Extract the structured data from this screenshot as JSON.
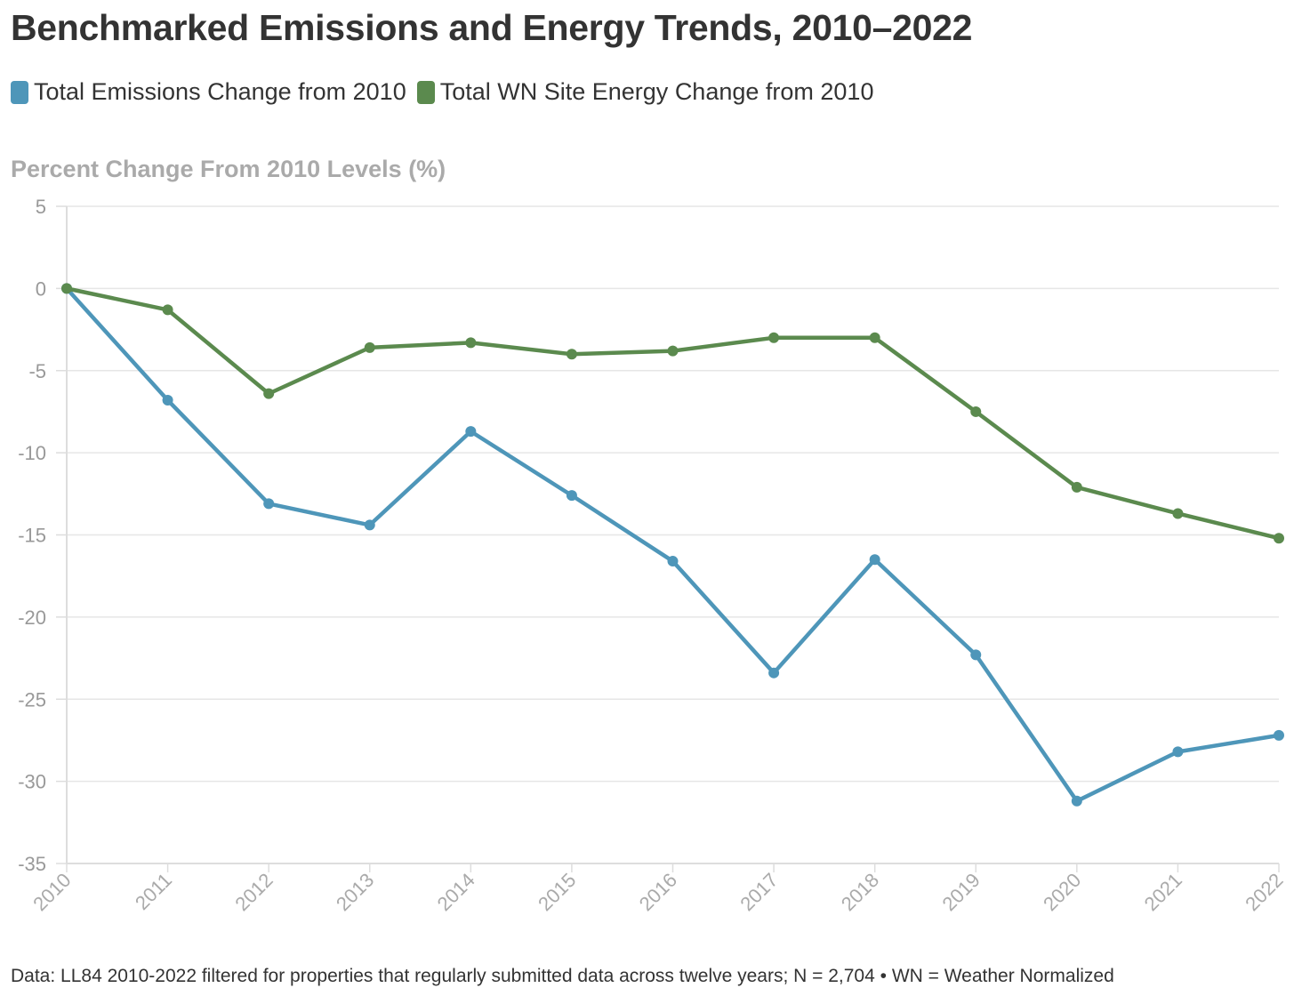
{
  "title": "Benchmarked Emissions and Energy Trends, 2010–2022",
  "footer": "Data: LL84 2010-2022 filtered for properties that regularly submitted data across twelve years; N = 2,704 • WN = Weather Normalized",
  "chart_data": {
    "type": "line",
    "title": "Benchmarked Emissions and Energy Trends, 2010–2022",
    "ylabel": "Percent Change From 2010 Levels (%)",
    "xlabel": "",
    "ylim": [
      -35,
      5
    ],
    "yticks": [
      5,
      0,
      -5,
      -10,
      -15,
      -20,
      -25,
      -30,
      -35
    ],
    "x": [
      "2010",
      "2011",
      "2012",
      "2013",
      "2014",
      "2015",
      "2016",
      "2017",
      "2018",
      "2019",
      "2020",
      "2021",
      "2022"
    ],
    "grid": true,
    "legend_position": "top-left",
    "series": [
      {
        "name": "Total Emissions Change from 2010",
        "color": "#4e96b9",
        "values": [
          0,
          -6.8,
          -13.1,
          -14.4,
          -8.7,
          -12.6,
          -16.6,
          -23.4,
          -16.5,
          -22.3,
          -31.2,
          -28.2,
          -27.2
        ]
      },
      {
        "name": "Total WN Site Energy Change from 2010",
        "color": "#5b8a4e",
        "values": [
          0,
          -1.3,
          -6.4,
          -3.6,
          -3.3,
          -4.0,
          -3.8,
          -3.0,
          -3.0,
          -7.5,
          -12.1,
          -13.7,
          -15.2
        ]
      }
    ]
  }
}
